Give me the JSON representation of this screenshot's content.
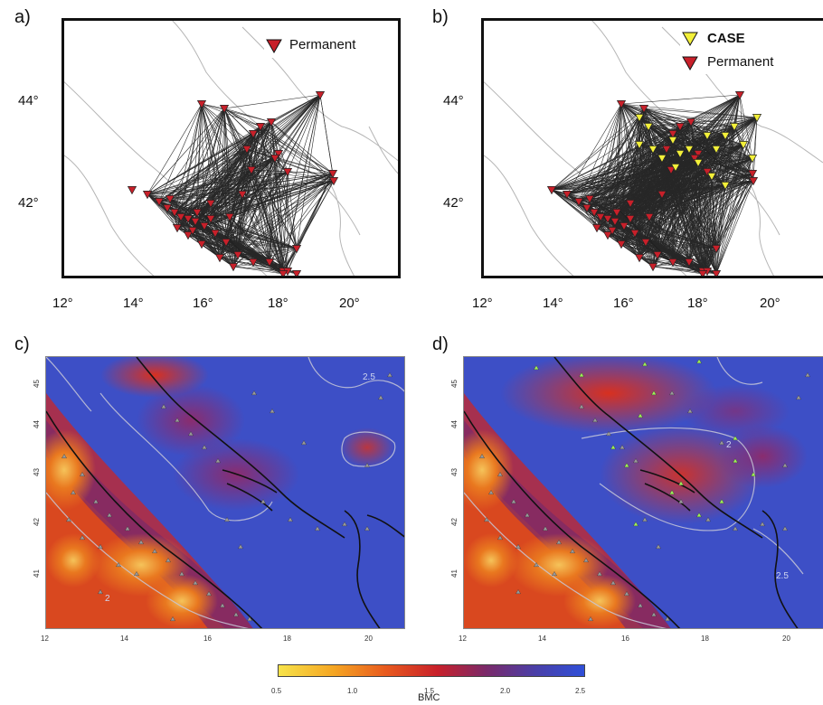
{
  "panels": {
    "a": {
      "letter": "a)"
    },
    "b": {
      "letter": "b)"
    },
    "c": {
      "letter": "c)"
    },
    "d": {
      "letter": "d)"
    }
  },
  "top_axes": {
    "x_ticks": [
      "12°",
      "14°",
      "16°",
      "18°",
      "20°"
    ],
    "y_ticks": [
      "44°",
      "42°"
    ]
  },
  "legend_a": {
    "permanent": "Permanent"
  },
  "legend_b": {
    "case": "CASE",
    "permanent": "Permanent"
  },
  "bottom_axes": {
    "x_ticks": [
      "12",
      "14",
      "16",
      "18",
      "20"
    ],
    "y_ticks": [
      "45",
      "44",
      "43",
      "42",
      "41"
    ]
  },
  "contour_labels": {
    "c2": "2",
    "c25": "2.5"
  },
  "colorbar": {
    "label": "BMC",
    "ticks": [
      "0.5",
      "1.0",
      "1.5",
      "2.0",
      "2.5"
    ]
  },
  "colors": {
    "permanent": "#c8202a",
    "case": "#f3f03a",
    "links": "#111111",
    "coast": "#b5b5b5"
  }
}
